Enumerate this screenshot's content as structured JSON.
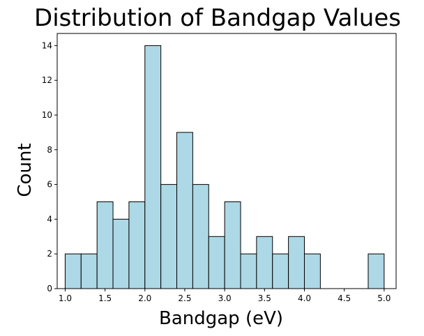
{
  "chart_data": {
    "type": "bar",
    "title": "Distribution of Bandgap Values",
    "xlabel": "Bandgap (eV)",
    "ylabel": "Count",
    "bin_width": 0.2,
    "bins": [
      {
        "start": 1.0,
        "count": 2
      },
      {
        "start": 1.2,
        "count": 2
      },
      {
        "start": 1.4,
        "count": 5
      },
      {
        "start": 1.6,
        "count": 4
      },
      {
        "start": 1.8,
        "count": 5
      },
      {
        "start": 2.0,
        "count": 14
      },
      {
        "start": 2.2,
        "count": 6
      },
      {
        "start": 2.4,
        "count": 9
      },
      {
        "start": 2.6,
        "count": 6
      },
      {
        "start": 2.8,
        "count": 3
      },
      {
        "start": 3.0,
        "count": 5
      },
      {
        "start": 3.2,
        "count": 2
      },
      {
        "start": 3.4,
        "count": 3
      },
      {
        "start": 3.6,
        "count": 2
      },
      {
        "start": 3.8,
        "count": 3
      },
      {
        "start": 4.0,
        "count": 2
      },
      {
        "start": 4.2,
        "count": 0
      },
      {
        "start": 4.4,
        "count": 0
      },
      {
        "start": 4.6,
        "count": 0
      },
      {
        "start": 4.8,
        "count": 2
      }
    ],
    "xlim": [
      0.9,
      5.15
    ],
    "ylim": [
      0,
      14.7
    ],
    "xticks": [
      "1.0",
      "1.5",
      "2.0",
      "2.5",
      "3.0",
      "3.5",
      "4.0",
      "4.5",
      "5.0"
    ],
    "yticks": [
      "0",
      "2",
      "4",
      "6",
      "8",
      "10",
      "12",
      "14"
    ],
    "bar_color": "#add8e6",
    "edge_color": "#000000",
    "grid": false
  }
}
